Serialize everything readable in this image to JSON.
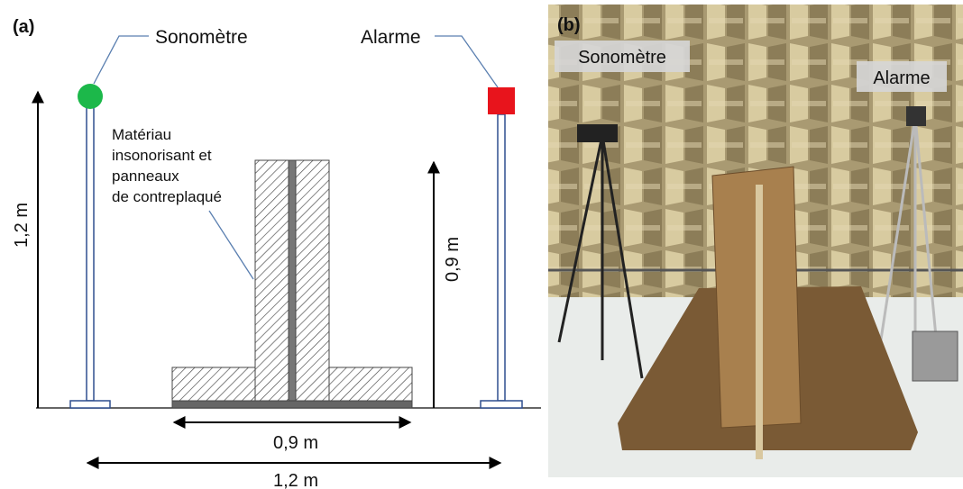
{
  "panel_a": {
    "label": "(a)",
    "sonometre_label": "Sonomètre",
    "alarme_label": "Alarme",
    "pole_height": "1,2 m",
    "material_label": [
      "Matériau",
      "insonorisant et",
      "panneaux",
      "de contreplaqué"
    ],
    "wall_height": "0,9 m",
    "base_width": "0,9 m",
    "total_width": "1,2 m"
  },
  "panel_b": {
    "label": "(b)",
    "sonometre_label": "Sonomètre",
    "alarme_label": "Alarme"
  }
}
